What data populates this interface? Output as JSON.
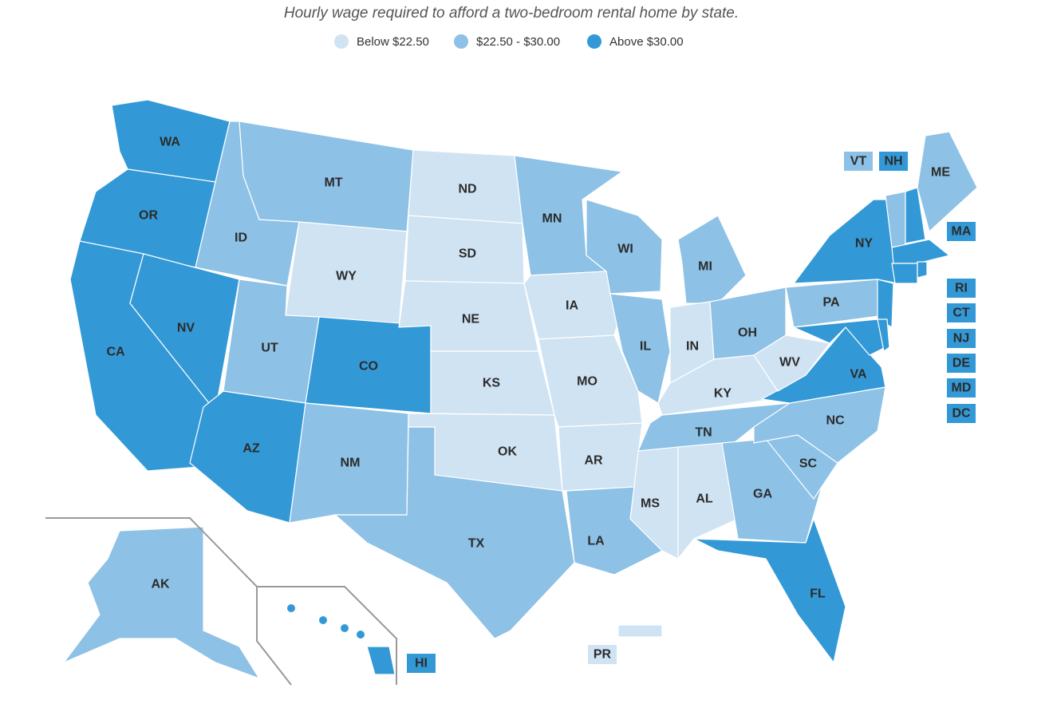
{
  "title": "Hourly wage required to afford a two-bedroom rental home by state.",
  "legend": [
    {
      "label": "Below $22.50",
      "color": "#cfe3f3"
    },
    {
      "label": "$22.50 - $30.00",
      "color": "#8dc1e6"
    },
    {
      "label": "Above $30.00",
      "color": "#3399d6"
    }
  ],
  "states": [
    {
      "label": "WA",
      "level": 2
    },
    {
      "label": "OR",
      "level": 2
    },
    {
      "label": "CA",
      "level": 2
    },
    {
      "label": "NV",
      "level": 2
    },
    {
      "label": "ID",
      "level": 1
    },
    {
      "label": "MT",
      "level": 1
    },
    {
      "label": "WY",
      "level": 0
    },
    {
      "label": "UT",
      "level": 1
    },
    {
      "label": "CO",
      "level": 2
    },
    {
      "label": "AZ",
      "level": 2
    },
    {
      "label": "NM",
      "level": 1
    },
    {
      "label": "ND",
      "level": 0
    },
    {
      "label": "SD",
      "level": 0
    },
    {
      "label": "NE",
      "level": 0
    },
    {
      "label": "KS",
      "level": 0
    },
    {
      "label": "OK",
      "level": 0
    },
    {
      "label": "TX",
      "level": 1
    },
    {
      "label": "MN",
      "level": 1
    },
    {
      "label": "IA",
      "level": 0
    },
    {
      "label": "MO",
      "level": 0
    },
    {
      "label": "AR",
      "level": 0
    },
    {
      "label": "LA",
      "level": 1
    },
    {
      "label": "WI",
      "level": 1
    },
    {
      "label": "IL",
      "level": 1
    },
    {
      "label": "MI",
      "level": 1
    },
    {
      "label": "IN",
      "level": 0
    },
    {
      "label": "OH",
      "level": 1
    },
    {
      "label": "KY",
      "level": 0
    },
    {
      "label": "TN",
      "level": 1
    },
    {
      "label": "MS",
      "level": 0
    },
    {
      "label": "AL",
      "level": 0
    },
    {
      "label": "GA",
      "level": 1
    },
    {
      "label": "SC",
      "level": 1
    },
    {
      "label": "NC",
      "level": 1
    },
    {
      "label": "VA",
      "level": 2
    },
    {
      "label": "WV",
      "level": 0
    },
    {
      "label": "PA",
      "level": 1
    },
    {
      "label": "NY",
      "level": 2
    },
    {
      "label": "NJ",
      "level": 2
    },
    {
      "label": "MD",
      "level": 2
    },
    {
      "label": "DE",
      "level": 2
    },
    {
      "label": "FL",
      "level": 2
    },
    {
      "label": "VT",
      "level": 1
    },
    {
      "label": "NH",
      "level": 2
    },
    {
      "label": "ME",
      "level": 1
    },
    {
      "label": "MA",
      "level": 2
    },
    {
      "label": "CT",
      "level": 2
    },
    {
      "label": "RI",
      "level": 2
    },
    {
      "label": "AK",
      "level": 1
    },
    {
      "label": "HI",
      "level": 2
    },
    {
      "label": "PR",
      "level": 0
    },
    {
      "label": "DC",
      "level": 2
    }
  ]
}
